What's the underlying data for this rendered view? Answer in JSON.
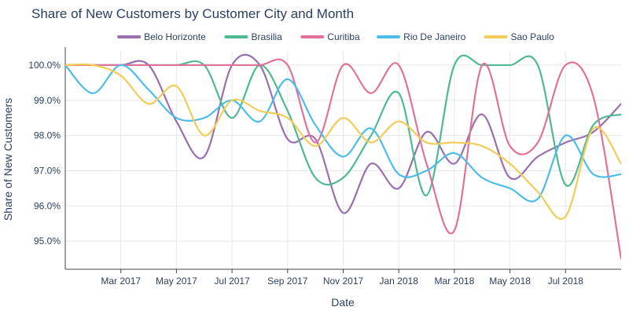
{
  "chart_data": {
    "type": "line",
    "title": "Share of New Customers by Customer City and Month",
    "xlabel": "Date",
    "ylabel": "Share of New Customers",
    "x": [
      "2017-01",
      "2017-02",
      "2017-03",
      "2017-04",
      "2017-05",
      "2017-06",
      "2017-07",
      "2017-08",
      "2017-09",
      "2017-10",
      "2017-11",
      "2017-12",
      "2018-01",
      "2018-02",
      "2018-03",
      "2018-04",
      "2018-05",
      "2018-06",
      "2018-07",
      "2018-08",
      "2018-09"
    ],
    "x_ticks": [
      "2017-03",
      "2017-05",
      "2017-07",
      "2017-09",
      "2017-11",
      "2018-01",
      "2018-03",
      "2018-05",
      "2018-07"
    ],
    "x_tick_labels": [
      "Mar 2017",
      "May 2017",
      "Jul 2017",
      "Sep 2017",
      "Nov 2017",
      "Jan 2018",
      "Mar 2018",
      "May 2018",
      "Jul 2018"
    ],
    "ylim": [
      94.2,
      100.4
    ],
    "y_ticks": [
      95,
      96,
      97,
      98,
      99,
      100
    ],
    "y_tick_labels": [
      "95.0%",
      "96.0%",
      "97.0%",
      "98.0%",
      "99.0%",
      "100.0%"
    ],
    "grid": true,
    "legend_position": "top",
    "series": [
      {
        "name": "Belo Horizonte",
        "color": "#9a6fb0",
        "values": [
          100.0,
          100.0,
          100.0,
          100.0,
          98.4,
          97.4,
          100.0,
          100.0,
          97.9,
          97.9,
          95.8,
          97.2,
          96.5,
          98.1,
          97.2,
          98.6,
          96.8,
          97.4,
          97.8,
          98.1,
          98.9
        ]
      },
      {
        "name": "Brasilia",
        "color": "#4fb98f",
        "values": [
          100.0,
          100.0,
          100.0,
          100.0,
          100.0,
          100.0,
          98.5,
          100.0,
          98.7,
          96.8,
          96.8,
          98.0,
          99.2,
          96.3,
          100.0,
          100.0,
          100.0,
          100.0,
          96.6,
          98.3,
          98.6
        ]
      },
      {
        "name": "Curitiba",
        "color": "#e0729a",
        "values": [
          100.0,
          100.0,
          100.0,
          100.0,
          100.0,
          100.0,
          100.0,
          100.0,
          100.0,
          97.8,
          100.0,
          99.2,
          100.0,
          97.2,
          95.3,
          100.0,
          97.7,
          97.8,
          100.0,
          99.1,
          94.5
        ]
      },
      {
        "name": "Rio De Janeiro",
        "color": "#4cbde9",
        "values": [
          100.0,
          99.2,
          100.0,
          99.3,
          98.5,
          98.5,
          99.0,
          98.4,
          99.6,
          98.3,
          97.4,
          98.2,
          96.9,
          97.0,
          97.5,
          96.8,
          96.5,
          96.2,
          98.0,
          96.9,
          96.9
        ]
      },
      {
        "name": "Sao Paulo",
        "color": "#f2cc57",
        "values": [
          100.0,
          100.0,
          99.7,
          98.9,
          99.4,
          98.0,
          99.0,
          98.7,
          98.5,
          97.7,
          98.5,
          97.8,
          98.4,
          97.8,
          97.8,
          97.7,
          97.2,
          96.4,
          95.7,
          98.2,
          97.2
        ]
      }
    ]
  }
}
